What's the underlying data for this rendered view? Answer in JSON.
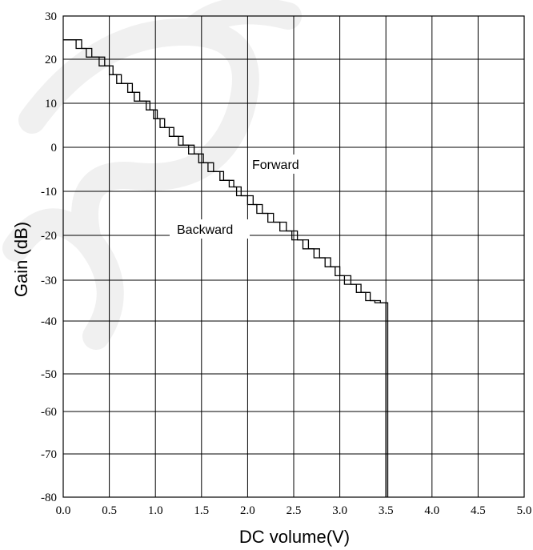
{
  "chart_data": {
    "type": "line",
    "xlabel": "DC volume(V)",
    "ylabel": "Gain (dB)",
    "x_ticks": [
      "0.0",
      "0.5",
      "1.0",
      "1.5",
      "2.0",
      "2.5",
      "3.0",
      "3.5",
      "4.0",
      "4.5",
      "5.0"
    ],
    "y_ticks": [
      "30",
      "20",
      "10",
      "0",
      "-10",
      "-20",
      "-30",
      "-40",
      "-50",
      "-60",
      "-70",
      "-80"
    ],
    "grid": true,
    "annotations": [
      {
        "text": "Forward"
      },
      {
        "text": "Backward"
      }
    ],
    "series": [
      {
        "x": [
          0.0,
          0.14,
          0.14,
          0.25,
          0.25,
          0.39,
          0.39,
          0.5,
          0.5,
          0.58,
          0.58,
          0.7,
          0.7,
          0.77,
          0.77,
          0.9,
          0.9,
          0.98,
          0.98,
          1.05,
          1.05,
          1.15,
          1.15,
          1.25,
          1.25,
          1.36,
          1.36,
          1.47,
          1.47,
          1.57,
          1.57,
          1.7,
          1.7,
          1.8,
          1.8,
          1.88,
          1.88,
          2.0,
          2.0,
          2.1,
          2.1,
          2.22,
          2.22,
          2.35,
          2.35,
          2.48,
          2.48,
          2.6,
          2.6,
          2.72,
          2.72,
          2.84,
          2.84,
          2.95,
          2.95,
          3.05,
          3.05,
          3.18,
          3.18,
          3.28,
          3.28,
          3.38,
          3.38,
          3.5,
          3.5
        ],
        "y": [
          24.5,
          24.5,
          22.5,
          22.5,
          20.5,
          20.5,
          18.5,
          18.5,
          16.5,
          16.5,
          14.5,
          14.5,
          12.5,
          12.5,
          10.5,
          10.5,
          8.5,
          8.5,
          6.5,
          6.5,
          4.5,
          4.5,
          2.5,
          2.5,
          0.5,
          0.5,
          -1.5,
          -1.5,
          -3.5,
          -3.5,
          -5.5,
          -5.5,
          -7.5,
          -7.5,
          -9.0,
          -9.0,
          -11.0,
          -11.0,
          -13.0,
          -13.0,
          -15.0,
          -15.0,
          -17.0,
          -17.0,
          -19.0,
          -19.0,
          -21.0,
          -21.0,
          -23.0,
          -23.0,
          -25.0,
          -25.0,
          -27.0,
          -27.0,
          -29.0,
          -29.0,
          -31.0,
          -31.0,
          -33.0,
          -33.0,
          -35.0,
          -35.0,
          -35.5,
          -35.5,
          -80.0
        ]
      },
      {
        "x": [
          0.0,
          0.2,
          0.2,
          0.31,
          0.31,
          0.45,
          0.45,
          0.54,
          0.54,
          0.63,
          0.63,
          0.75,
          0.75,
          0.83,
          0.83,
          0.94,
          0.94,
          1.02,
          1.02,
          1.1,
          1.1,
          1.2,
          1.2,
          1.3,
          1.3,
          1.42,
          1.42,
          1.52,
          1.52,
          1.63,
          1.63,
          1.74,
          1.74,
          1.85,
          1.85,
          1.93,
          1.93,
          2.06,
          2.06,
          2.16,
          2.16,
          2.28,
          2.28,
          2.42,
          2.42,
          2.54,
          2.54,
          2.66,
          2.66,
          2.78,
          2.78,
          2.9,
          2.9,
          3.0,
          3.0,
          3.12,
          3.12,
          3.23,
          3.23,
          3.33,
          3.33,
          3.44,
          3.44,
          3.52,
          3.52
        ],
        "y": [
          24.5,
          24.5,
          22.5,
          22.5,
          20.5,
          20.5,
          18.5,
          18.5,
          16.5,
          16.5,
          14.5,
          14.5,
          12.5,
          12.5,
          10.5,
          10.5,
          8.5,
          8.5,
          6.5,
          6.5,
          4.5,
          4.5,
          2.5,
          2.5,
          0.5,
          0.5,
          -1.5,
          -1.5,
          -3.5,
          -3.5,
          -5.5,
          -5.5,
          -7.5,
          -7.5,
          -9.0,
          -9.0,
          -11.0,
          -11.0,
          -13.0,
          -13.0,
          -15.0,
          -15.0,
          -17.0,
          -17.0,
          -19.0,
          -19.0,
          -21.0,
          -21.0,
          -23.0,
          -23.0,
          -25.0,
          -25.0,
          -27.0,
          -27.0,
          -29.0,
          -29.0,
          -31.0,
          -31.0,
          -33.0,
          -33.0,
          -35.0,
          -35.0,
          -35.5,
          -35.5,
          -80.0
        ]
      }
    ]
  }
}
